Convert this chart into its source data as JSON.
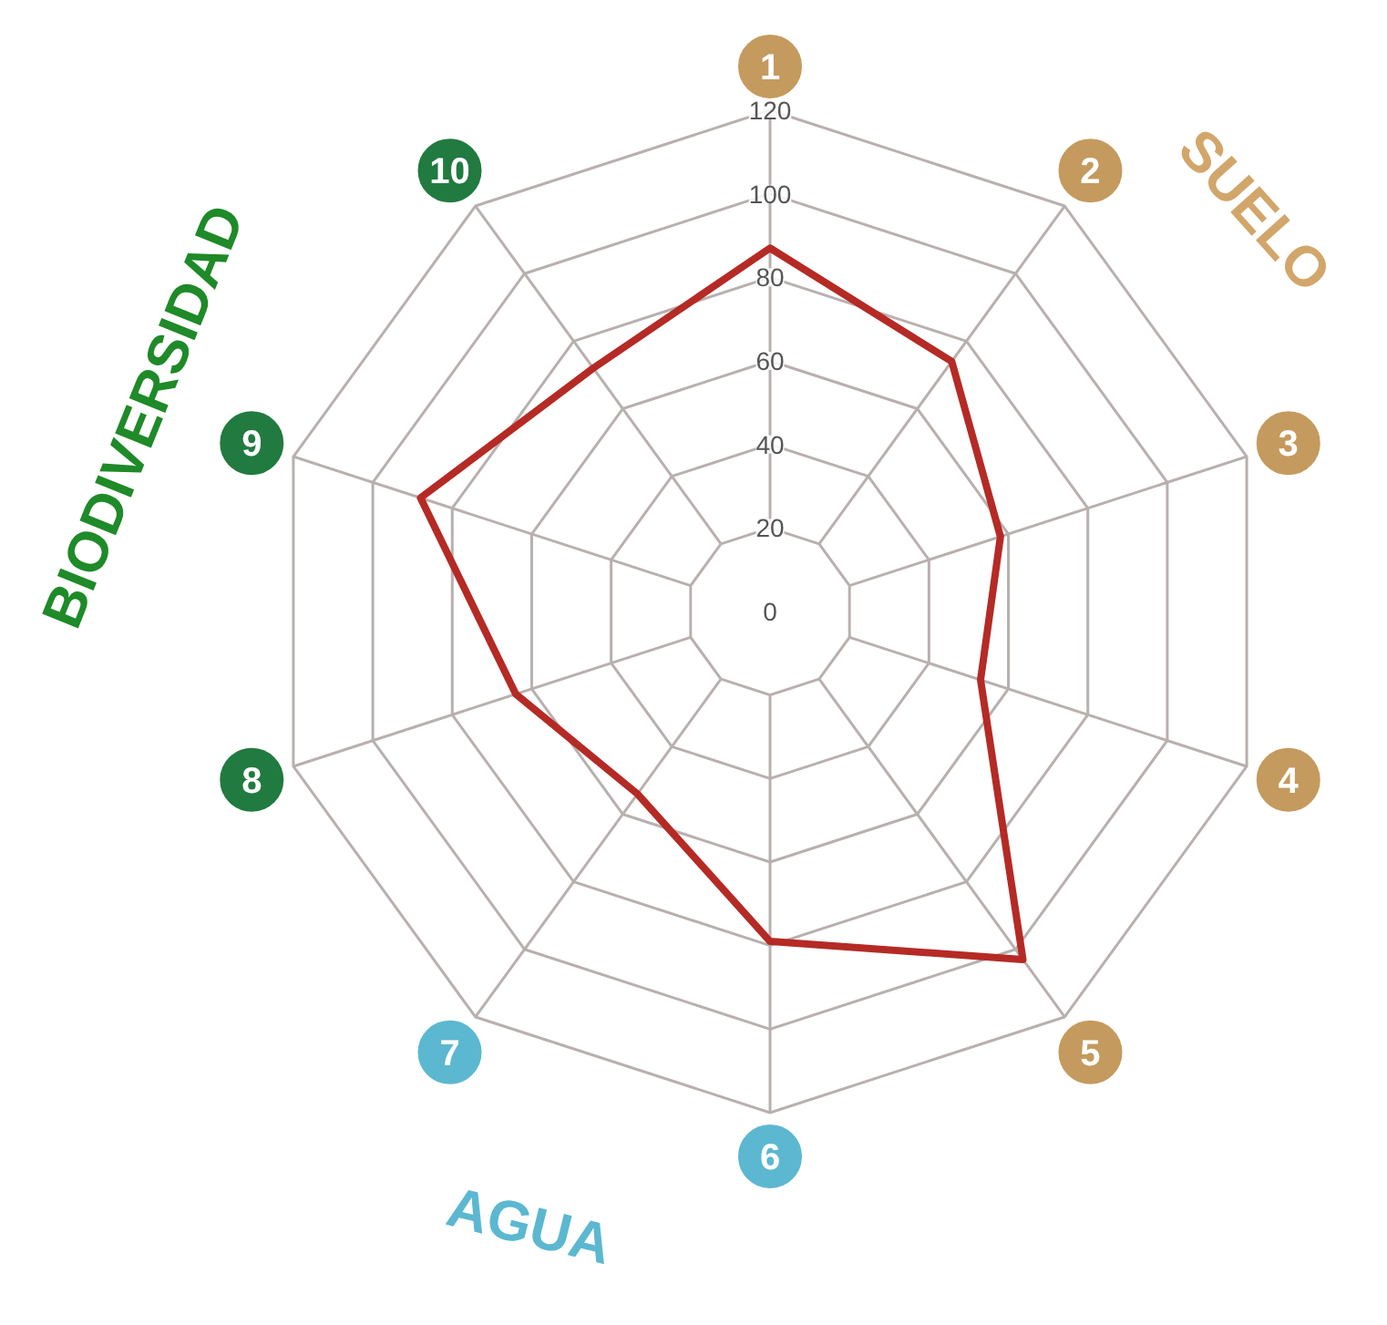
{
  "chart_data": {
    "type": "radar",
    "categories": [
      "1",
      "2",
      "3",
      "4",
      "5",
      "6",
      "7",
      "8",
      "9",
      "10"
    ],
    "series": [
      {
        "color": "#b52a25",
        "values": [
          87,
          74,
          58,
          53,
          103,
          79,
          54,
          64,
          88,
          72
        ]
      }
    ],
    "ylim": [
      0,
      120
    ],
    "yticks": [
      0,
      20,
      40,
      60,
      80,
      100,
      120
    ],
    "grid": true,
    "marker": "none",
    "line_style": "solid",
    "annotations": [
      "SUELO",
      "AGUA",
      "BIODIVERSIDAD"
    ]
  }
}
